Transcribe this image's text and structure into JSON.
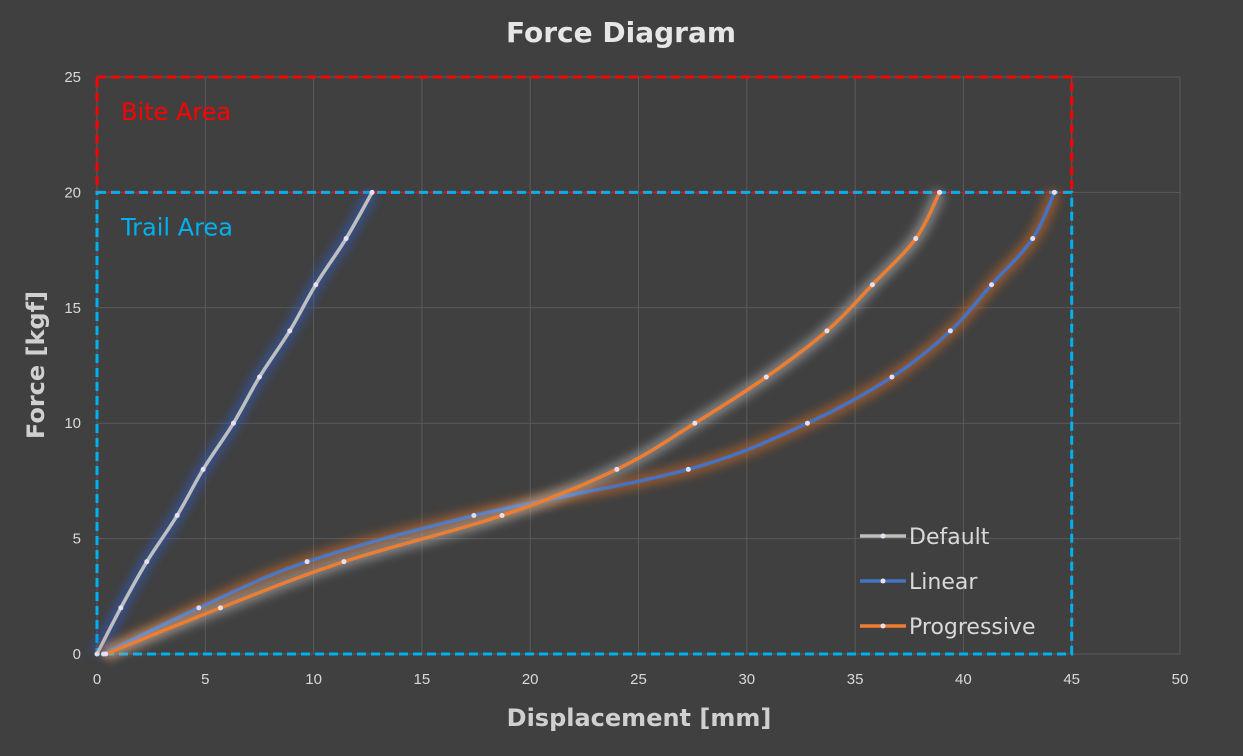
{
  "chart_data": {
    "type": "line",
    "title": "Force Diagram",
    "xlabel": "Displacement [mm]",
    "ylabel": "Force [kgf]",
    "xlim": [
      0,
      50
    ],
    "ylim": [
      0,
      25
    ],
    "xticks": [
      "0",
      "5",
      "10",
      "15",
      "20",
      "25",
      "30",
      "35",
      "40",
      "45",
      "50"
    ],
    "yticks": [
      "0",
      "5",
      "10",
      "15",
      "20",
      "25"
    ],
    "grid": true,
    "legend_position": "bottom-right",
    "series": [
      {
        "name": "Default",
        "color": "#bfbfbf",
        "glow": "#2f5fd0",
        "x": [
          0,
          1.1,
          2.3,
          3.7,
          4.9,
          6.3,
          7.5,
          8.9,
          10.1,
          11.5,
          12.7
        ],
        "y": [
          0,
          2,
          4,
          6,
          8,
          10,
          12,
          14,
          16,
          18,
          20
        ]
      },
      {
        "name": "Linear",
        "color": "#4472c4",
        "glow": "#e07020",
        "x": [
          0.3,
          4.7,
          9.7,
          17.4,
          27.3,
          32.8,
          36.7,
          39.4,
          41.3,
          43.2,
          44.2
        ],
        "y": [
          0,
          2,
          4,
          6,
          8,
          10,
          12,
          14,
          16,
          18,
          20
        ]
      },
      {
        "name": "Progressive",
        "color": "#ed7d31",
        "glow": "#bfbfbf",
        "x": [
          0.4,
          5.7,
          11.4,
          18.7,
          24.0,
          27.6,
          30.9,
          33.7,
          35.8,
          37.8,
          38.9
        ],
        "y": [
          0,
          2,
          4,
          6,
          8,
          10,
          12,
          14,
          16,
          18,
          20
        ]
      }
    ],
    "annotations": [
      {
        "label": "Bite Area",
        "color": "#ff0000",
        "x": [
          0,
          45
        ],
        "y": [
          20,
          25
        ]
      },
      {
        "label": "Trail Area",
        "color": "#00b0f0",
        "x": [
          0,
          45
        ],
        "y": [
          0,
          20
        ]
      }
    ]
  }
}
